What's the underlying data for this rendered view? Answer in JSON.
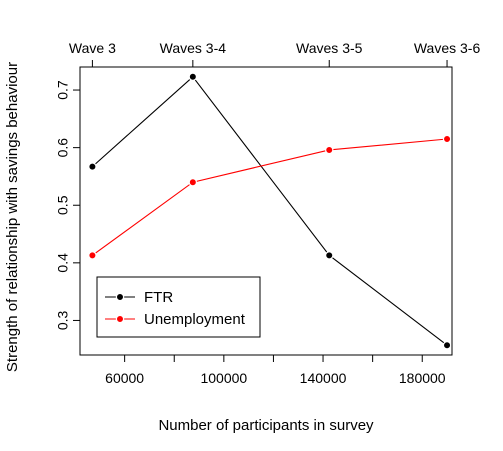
{
  "chart_data": {
    "type": "line",
    "title": "",
    "xlabel": "Number of participants in survey",
    "ylabel": "Strength of relationship with savings behaviour",
    "xlim": [
      42000,
      192000
    ],
    "ylim": [
      0.24,
      0.74
    ],
    "x_ticks": [
      {
        "value": 60000,
        "label": "60000"
      },
      {
        "value": 80000,
        "label": ""
      },
      {
        "value": 100000,
        "label": "100000"
      },
      {
        "value": 120000,
        "label": ""
      },
      {
        "value": 140000,
        "label": "140000"
      },
      {
        "value": 160000,
        "label": ""
      },
      {
        "value": 180000,
        "label": "180000"
      }
    ],
    "y_ticks": [
      {
        "value": 0.3,
        "label": "0.3"
      },
      {
        "value": 0.4,
        "label": "0.4"
      },
      {
        "value": 0.5,
        "label": "0.5"
      },
      {
        "value": 0.6,
        "label": "0.6"
      },
      {
        "value": 0.7,
        "label": "0.7"
      }
    ],
    "top_axis": [
      {
        "value": 47000,
        "label": "Wave 3"
      },
      {
        "value": 87500,
        "label": "Waves 3-4"
      },
      {
        "value": 142500,
        "label": "Waves 3-5"
      },
      {
        "value": 190000,
        "label": "Waves 3-6"
      }
    ],
    "series": [
      {
        "name": "FTR",
        "color": "#000000",
        "x": [
          47000,
          87500,
          142500,
          190000
        ],
        "y": [
          0.567,
          0.723,
          0.413,
          0.257
        ]
      },
      {
        "name": "Unemployment",
        "color": "#ff0000",
        "x": [
          47000,
          87500,
          142500,
          190000
        ],
        "y": [
          0.413,
          0.54,
          0.596,
          0.615
        ]
      }
    ],
    "legend_position": "bottom-left",
    "grid": false
  }
}
